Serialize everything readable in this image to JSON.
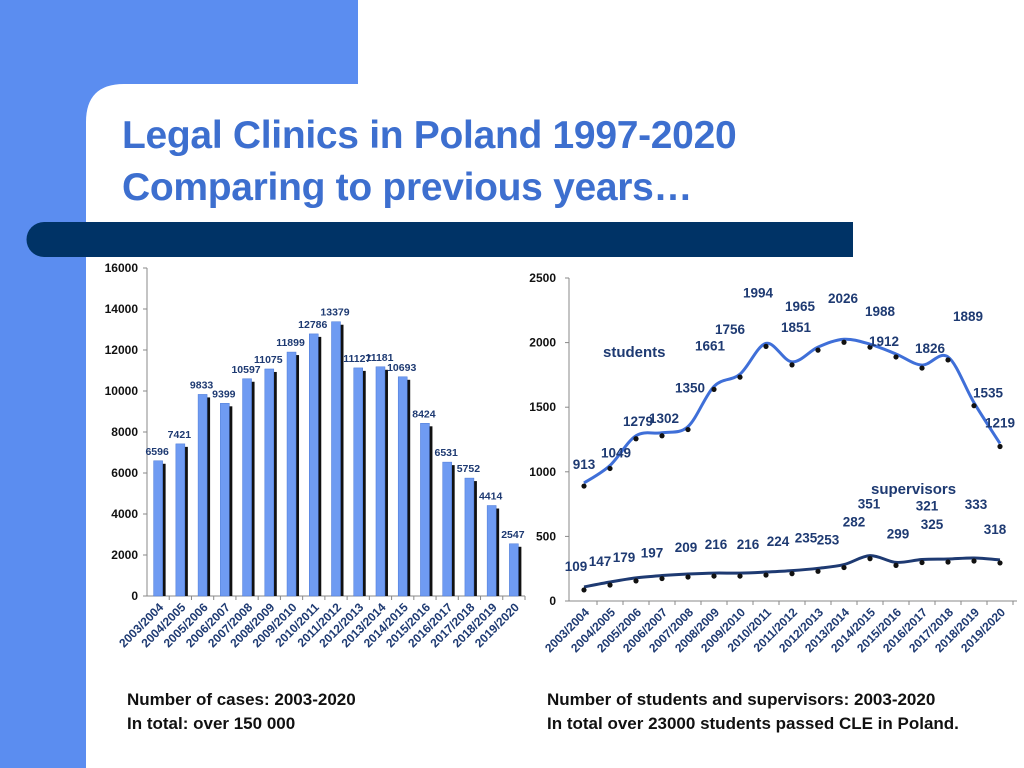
{
  "slide": {
    "title_line1": "Legal Clinics in Poland 1997-2020",
    "title_line2": "Comparing to previous years…",
    "colors": {
      "accent_panel": "#5b8df0",
      "band": "#003366",
      "title": "#3d6fcf",
      "bar": "#6f9bf2",
      "bar_shadow": "#111111"
    }
  },
  "captions": {
    "left_line1": "Number of cases: 2003-2020",
    "left_line2": "In total: over 150 000",
    "right_line1": "Number of students and supervisors: 2003-2020",
    "right_line2": "In total over 23000 students passed CLE in Poland."
  },
  "chart_data": [
    {
      "type": "bar",
      "categories": [
        "2003/2004",
        "2004/2005",
        "2005/2006",
        "2006/2007",
        "2007/2008",
        "2008/2009",
        "2009/2010",
        "2010/2011",
        "2011/2012",
        "2012/2013",
        "2013/2014",
        "2014/2015",
        "2015/2016",
        "2016/2017",
        "2017/2018",
        "2018/2019",
        "2019/2020"
      ],
      "values": [
        6596,
        7421,
        9833,
        9399,
        10597,
        11075,
        11899,
        12786,
        13379,
        11127,
        11181,
        10693,
        8424,
        6531,
        5752,
        4414,
        2547
      ],
      "ylim": [
        0,
        16000
      ],
      "yticks": [
        0,
        2000,
        4000,
        6000,
        8000,
        10000,
        12000,
        14000,
        16000
      ],
      "data_labels": true,
      "grid": false
    },
    {
      "type": "line",
      "categories": [
        "2003/2004",
        "2004/2005",
        "2005/2006",
        "2006/2007",
        "2007/2008",
        "2008/2009",
        "2009/2010",
        "2010/2011",
        "2011/2012",
        "2012/2013",
        "2013/2014",
        "2014/2015",
        "2015/2016",
        "2016/2017",
        "2017/2018",
        "2018/2019",
        "2019/2020"
      ],
      "series": [
        {
          "name": "students",
          "color": "#3f6fd8",
          "values": [
            913,
            1049,
            1279,
            1302,
            1350,
            1661,
            1756,
            1994,
            1851,
            1965,
            2026,
            1988,
            1912,
            1826,
            1889,
            1535,
            1219
          ]
        },
        {
          "name": "supervisors",
          "color": "#1e3a72",
          "values": [
            109,
            147,
            179,
            197,
            209,
            216,
            216,
            224,
            235,
            253,
            282,
            351,
            299,
            321,
            325,
            333,
            318
          ]
        }
      ],
      "ylim": [
        0,
        2500
      ],
      "yticks": [
        0,
        500,
        1000,
        1500,
        2000,
        2500
      ],
      "data_labels": true,
      "grid": false
    }
  ]
}
